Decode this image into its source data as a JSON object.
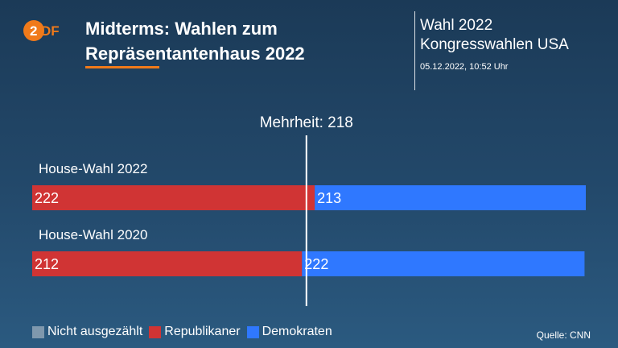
{
  "header": {
    "logo_text": "2DF",
    "title_line1": "Midterms: Wahlen zum",
    "title_line2": "Repräsentantenhaus 2022",
    "side_line1": "Wahl 2022",
    "side_line2": "Kongresswahlen USA",
    "date": "05.12.2022, 10:52 Uhr"
  },
  "colors": {
    "republikaner": "#d03434",
    "demokraten": "#2f78ff",
    "nicht_ausgezaehlt": "#7f98ad",
    "accent": "#f07a1a"
  },
  "chart_data": {
    "type": "bar",
    "orientation": "horizontal-stacked",
    "total_seats": 435,
    "majority": {
      "label": "Mehrheit: 218",
      "value": 218
    },
    "categories": [
      "House-Wahl 2022",
      "House-Wahl 2020"
    ],
    "series": [
      {
        "name": "Republikaner",
        "values": [
          222,
          212
        ]
      },
      {
        "name": "Demokraten",
        "values": [
          213,
          222
        ]
      },
      {
        "name": "Nicht ausgezählt",
        "values": [
          0,
          0
        ]
      }
    ]
  },
  "legend": [
    {
      "key": "nicht_ausgezaehlt",
      "label": "Nicht ausgezählt"
    },
    {
      "key": "republikaner",
      "label": "Republikaner"
    },
    {
      "key": "demokraten",
      "label": "Demokraten"
    }
  ],
  "source": "Quelle: CNN"
}
